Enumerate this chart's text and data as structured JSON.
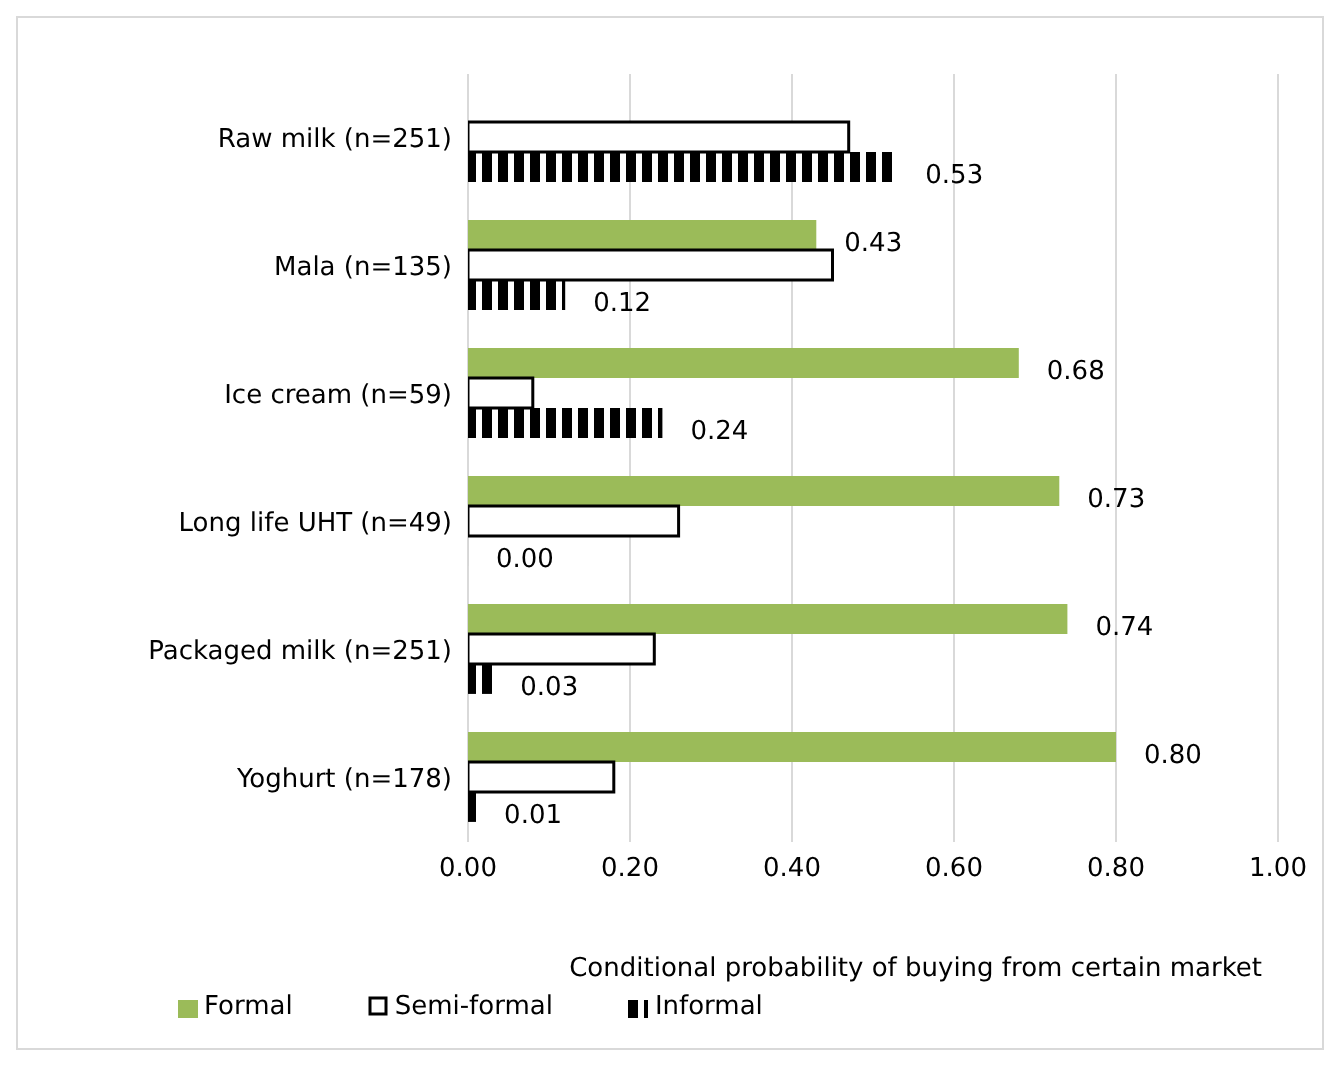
{
  "chart_data": {
    "type": "bar",
    "orientation": "horizontal",
    "xlabel": "Conditional probability of buying from certain market",
    "categories": [
      "Raw milk (n=251)",
      "Mala (n=135)",
      "Ice cream (n=59)",
      "Long life UHT (n=49)",
      "Packaged milk (n=251)",
      "Yoghurt (n=178)"
    ],
    "series": [
      {
        "name": "Formal",
        "color": "#9bbb59",
        "values": [
          null,
          0.43,
          0.68,
          0.73,
          0.74,
          0.8
        ],
        "value_labels": [
          null,
          "0.43",
          "0.68",
          "0.73",
          "0.74",
          "0.80"
        ]
      },
      {
        "name": "Semi-formal",
        "color": "#ffffff",
        "values": [
          0.47,
          0.45,
          0.08,
          0.26,
          0.23,
          0.18
        ]
      },
      {
        "name": "Informal",
        "color": "#000000",
        "values": [
          0.53,
          0.12,
          0.24,
          0.0,
          0.03,
          0.01
        ],
        "value_labels": [
          "0.53",
          "0.12",
          "0.24",
          "0.00",
          "0.03",
          "0.01"
        ]
      }
    ],
    "xlim": [
      0,
      1
    ],
    "xticks": [
      {
        "value": 0,
        "label": "0.00"
      },
      {
        "value": 0.2,
        "label": "0.20"
      },
      {
        "value": 0.4,
        "label": "0.40"
      },
      {
        "value": 0.6,
        "label": "0.60"
      },
      {
        "value": 0.8,
        "label": "0.80"
      },
      {
        "value": 1,
        "label": "1.00"
      }
    ],
    "grid": "x",
    "legend": "bottom"
  }
}
